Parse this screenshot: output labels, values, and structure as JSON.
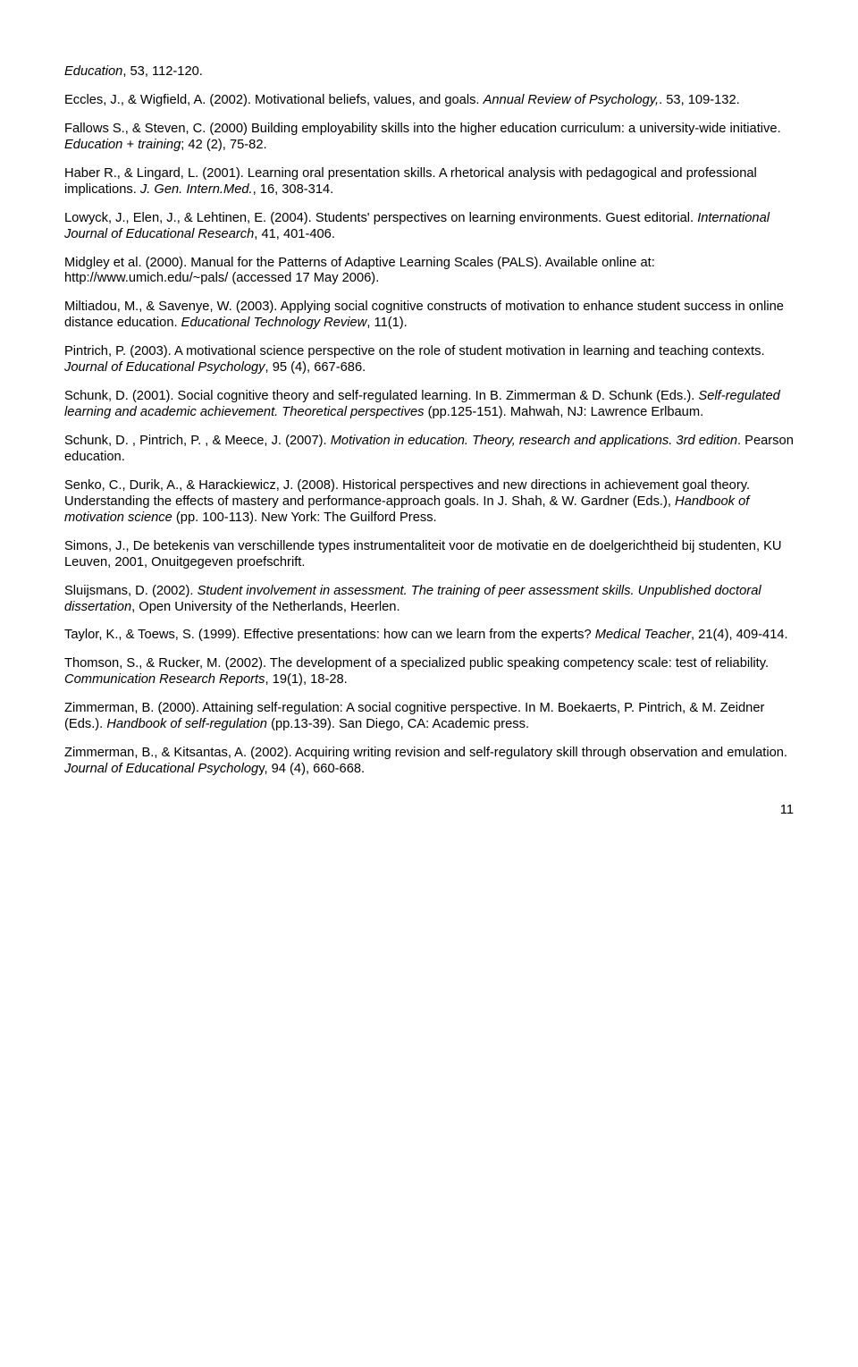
{
  "page_number": "11",
  "refs": [
    {
      "parts": [
        {
          "text": "Education",
          "italic": true
        },
        {
          "text": ", 53, 112-120.",
          "italic": false
        }
      ]
    },
    {
      "parts": [
        {
          "text": "Eccles, J., & Wigfield, A. (2002). Motivational beliefs, values, and goals. ",
          "italic": false
        },
        {
          "text": "Annual Review of Psychology,",
          "italic": true
        },
        {
          "text": ". 53, 109-132.",
          "italic": false
        }
      ]
    },
    {
      "parts": [
        {
          "text": "Fallows S., & Steven, C. (2000) Building employability skills into the higher education curriculum: a university-wide initiative. ",
          "italic": false
        },
        {
          "text": "Education + training",
          "italic": true
        },
        {
          "text": "; 42 (2), 75-82.",
          "italic": false
        }
      ]
    },
    {
      "parts": [
        {
          "text": "Haber R., & Lingard, L. (2001). Learning oral presentation skills. A rhetorical analysis with pedagogical and professional implications. ",
          "italic": false
        },
        {
          "text": "J. Gen. Intern.Med.",
          "italic": true
        },
        {
          "text": ", 16, 308-314.",
          "italic": false
        }
      ]
    },
    {
      "parts": [
        {
          "text": "Lowyck, J., Elen, J., & Lehtinen, E. (2004). Students' perspectives on learning environments. Guest editorial. ",
          "italic": false
        },
        {
          "text": "International Journal of Educational Research",
          "italic": true
        },
        {
          "text": ", 41, 401-406.",
          "italic": false
        }
      ]
    },
    {
      "parts": [
        {
          "text": "Midgley et al. (2000). Manual for the Patterns of Adaptive Learning Scales (PALS). Available online at: http://www.umich.edu/~pals/ (accessed 17 May 2006).",
          "italic": false
        }
      ]
    },
    {
      "parts": [
        {
          "text": "Miltiadou, M., & Savenye, W. (2003). Applying social cognitive constructs of motivation to enhance student success in online distance education. ",
          "italic": false
        },
        {
          "text": "Educational Technology Review",
          "italic": true
        },
        {
          "text": ", 11(1).",
          "italic": false
        }
      ]
    },
    {
      "parts": [
        {
          "text": "Pintrich, P. (2003). A motivational science perspective on the role of student motivation in learning and teaching contexts. ",
          "italic": false
        },
        {
          "text": "Journal of Educational Psychology",
          "italic": true
        },
        {
          "text": ", 95 (4), 667-686.",
          "italic": false
        }
      ]
    },
    {
      "parts": [
        {
          "text": "Schunk, D. (2001). Social cognitive theory and self-regulated learning. In B. Zimmerman & D. Schunk (Eds.). ",
          "italic": false
        },
        {
          "text": "Self-regulated learning and academic achievement. Theoretical perspectives",
          "italic": true
        },
        {
          "text": " (pp.125-151). Mahwah, NJ: Lawrence Erlbaum.",
          "italic": false
        }
      ]
    },
    {
      "parts": [
        {
          "text": "Schunk, D. , Pintrich, P. , & Meece, J. (2007). ",
          "italic": false
        },
        {
          "text": "Motivation in education. Theory, research and applications. 3rd edition",
          "italic": true
        },
        {
          "text": ". Pearson education.",
          "italic": false
        }
      ]
    },
    {
      "parts": [
        {
          "text": "Senko, C., Durik, A., & Harackiewicz, J. (2008). Historical perspectives and new directions in achievement goal theory. Understanding the effects of mastery and performance-approach goals. In J. Shah, & W. Gardner (Eds.), ",
          "italic": false
        },
        {
          "text": "Handbook of motivation science",
          "italic": true
        },
        {
          "text": " (pp. 100-113). New York: The Guilford Press.",
          "italic": false
        }
      ]
    },
    {
      "parts": [
        {
          "text": "Simons, J., De betekenis van verschillende types instrumentaliteit voor de motivatie en de doelgerichtheid bij studenten, KU Leuven, 2001, Onuitgegeven proefschrift.",
          "italic": false
        }
      ]
    },
    {
      "parts": [
        {
          "text": "Sluijsmans, D. (2002). ",
          "italic": false
        },
        {
          "text": "Student involvement in assessment. The training of peer assessment skills. Unpublished doctoral dissertation",
          "italic": true
        },
        {
          "text": ", Open University of the Netherlands, Heerlen.",
          "italic": false
        }
      ]
    },
    {
      "parts": [
        {
          "text": "Taylor, K., & Toews, S. (1999). Effective presentations: how can we learn from the experts? ",
          "italic": false
        },
        {
          "text": "Medical Teacher",
          "italic": true
        },
        {
          "text": ", 21(4), 409-414.",
          "italic": false
        }
      ]
    },
    {
      "parts": [
        {
          "text": "Thomson, S., & Rucker, M. (2002). The development of a specialized public speaking competency scale: test of reliability. ",
          "italic": false
        },
        {
          "text": "Communication Research Reports",
          "italic": true
        },
        {
          "text": ", 19(1), 18-28.",
          "italic": false
        }
      ]
    },
    {
      "parts": [
        {
          "text": "Zimmerman, B. (2000). Attaining self-regulation: A social cognitive perspective. In M. Boekaerts, P. Pintrich, & M. Zeidner (Eds.). ",
          "italic": false
        },
        {
          "text": "Handbook of self-regulation",
          "italic": true
        },
        {
          "text": " (pp.13-39). San Diego, CA: Academic press.",
          "italic": false
        }
      ]
    },
    {
      "parts": [
        {
          "text": "Zimmerman, B., & Kitsantas, A. (2002). Acquiring writing revision and self-regulatory skill through observation and emulation. ",
          "italic": false
        },
        {
          "text": "Journal of Educational Psycholog",
          "italic": true
        },
        {
          "text": "y, 94 (4), 660-668.",
          "italic": false
        }
      ]
    }
  ]
}
